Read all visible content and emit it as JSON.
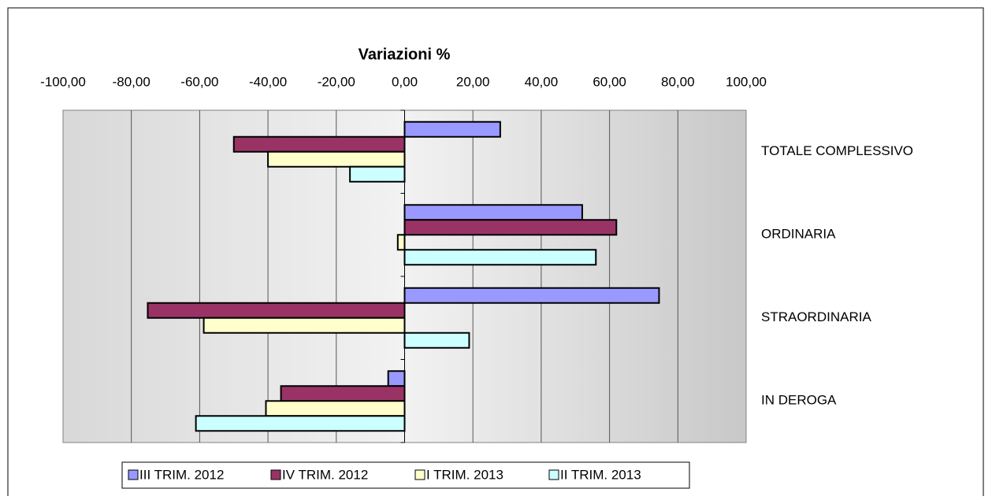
{
  "chart_data": {
    "type": "hbar",
    "title": "Variazioni %",
    "categories": [
      "TOTALE COMPLESSIVO",
      "ORDINARIA",
      "STRAORDINARIA",
      "IN DEROGA"
    ],
    "series": [
      {
        "name": "III TRIM. 2012",
        "color": "#9999ff",
        "values": [
          28,
          52,
          74.5,
          -4.8
        ]
      },
      {
        "name": "IV TRIM. 2012",
        "color": "#993366",
        "values": [
          -50,
          62,
          -75.2,
          -36.2
        ]
      },
      {
        "name": "I TRIM. 2013",
        "color": "#ffffcc",
        "values": [
          -40,
          -2,
          -58.8,
          -40.6
        ]
      },
      {
        "name": "II TRIM. 2013",
        "color": "#ccffff",
        "values": [
          -16,
          56,
          18.9,
          -61.1
        ]
      }
    ],
    "xlim": [
      -100,
      100
    ],
    "xticks": [
      {
        "value": -100,
        "label": "-100,00"
      },
      {
        "value": -80,
        "label": "-80,00"
      },
      {
        "value": -60,
        "label": "-60,00"
      },
      {
        "value": -40,
        "label": "-40,00"
      },
      {
        "value": -20,
        "label": "-20,00"
      },
      {
        "value": 0,
        "label": "0,00"
      },
      {
        "value": 20,
        "label": "20,00"
      },
      {
        "value": 40,
        "label": "40,00"
      },
      {
        "value": 60,
        "label": "60,00"
      },
      {
        "value": 80,
        "label": "80,00"
      },
      {
        "value": 100,
        "label": "100,00"
      }
    ],
    "grid": true,
    "legend": "bottom"
  }
}
